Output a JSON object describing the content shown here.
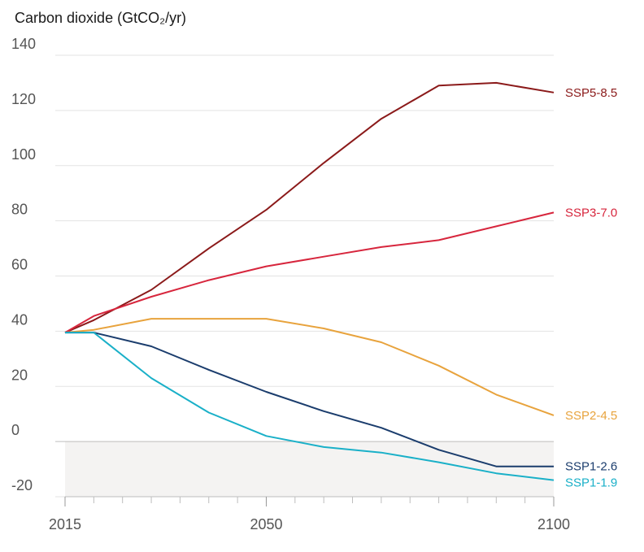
{
  "chart_data": {
    "type": "line",
    "title": "Carbon dioxide (GtCO₂/yr)",
    "xlim": [
      2015,
      2100
    ],
    "ylim": [
      -20,
      140
    ],
    "x_ticks": [
      "2015",
      "2050",
      "2100"
    ],
    "y_ticks": [
      "140",
      "120",
      "100",
      "80",
      "60",
      "40",
      "20",
      "0",
      "-20"
    ],
    "grid": true,
    "negative_region_shaded": true,
    "x": [
      2015,
      2020,
      2030,
      2040,
      2050,
      2060,
      2070,
      2080,
      2090,
      2100
    ],
    "series": [
      {
        "name": "SSP5-8.5",
        "color": "#8b1a1a",
        "values": [
          39.5,
          44,
          55,
          70,
          84,
          101,
          117,
          129,
          130,
          126.5
        ]
      },
      {
        "name": "SSP3-7.0",
        "color": "#d7263d",
        "values": [
          39.5,
          45.5,
          52.5,
          58.5,
          63.5,
          67,
          70.5,
          73,
          78,
          83
        ]
      },
      {
        "name": "SSP2-4.5",
        "color": "#e8a33d",
        "values": [
          39.5,
          40.5,
          44.5,
          44.5,
          44.5,
          41,
          36,
          27.5,
          17,
          9.5
        ]
      },
      {
        "name": "SSP1-2.6",
        "color": "#1b3d6d",
        "values": [
          39.5,
          39.5,
          34.5,
          26,
          18,
          11,
          5,
          -3,
          -9,
          -9
        ]
      },
      {
        "name": "SSP1-1.9",
        "color": "#1ab0c8",
        "values": [
          39.5,
          39.5,
          23,
          10.5,
          2,
          -2,
          -4,
          -7.5,
          -11.5,
          -14
        ]
      }
    ]
  }
}
